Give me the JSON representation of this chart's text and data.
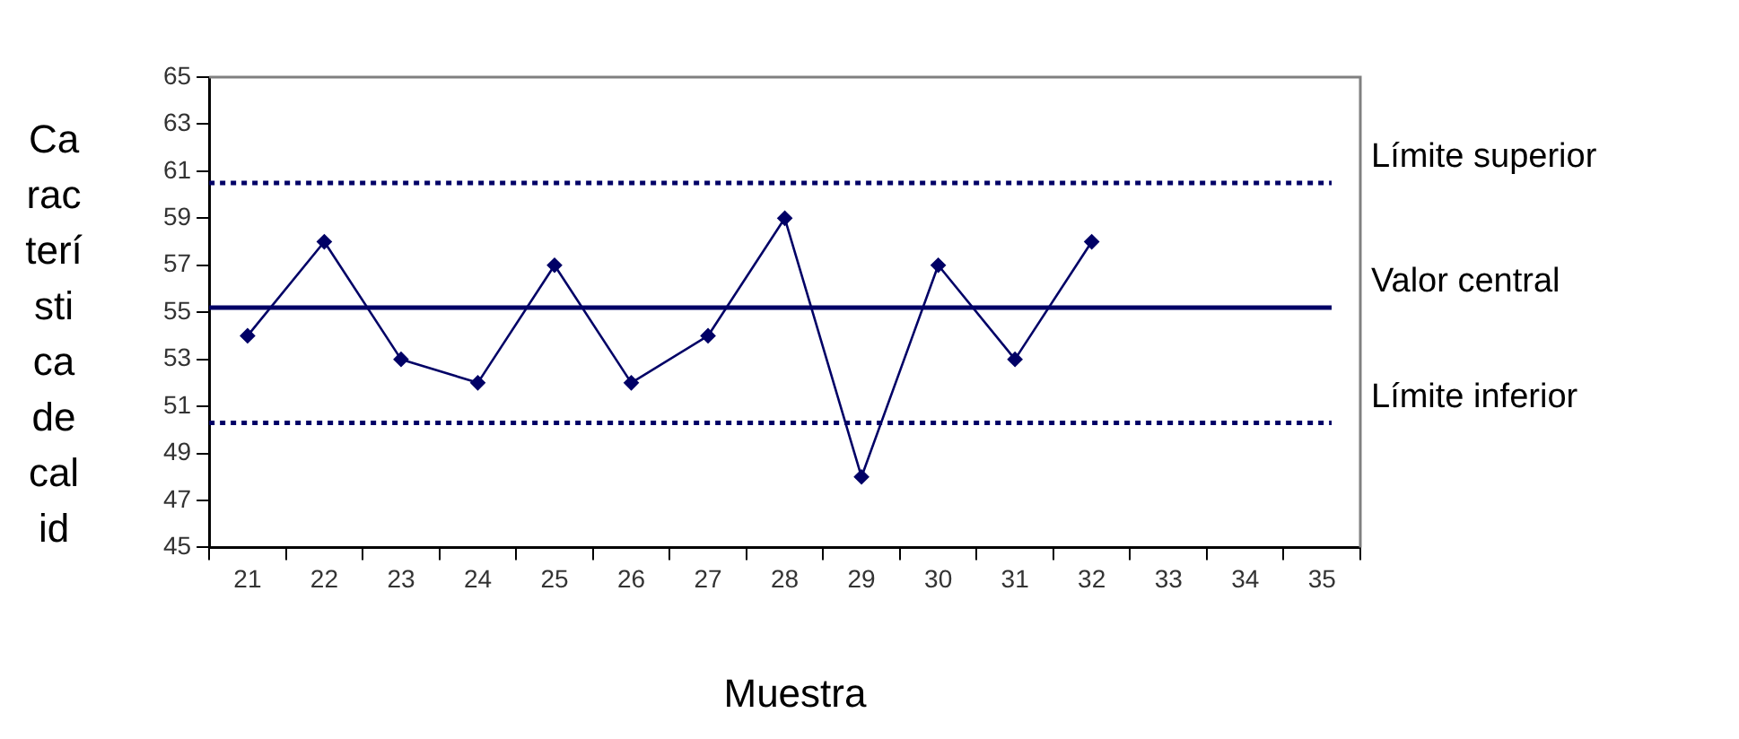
{
  "chart_data": {
    "type": "line",
    "ylabel": "Característica de calid",
    "xlabel": "Muestra",
    "categories": [
      "21",
      "22",
      "23",
      "24",
      "25",
      "26",
      "27",
      "28",
      "29",
      "30",
      "31",
      "32",
      "33",
      "34",
      "35"
    ],
    "series": [
      {
        "color": "#000066",
        "values": [
          54,
          58,
          53,
          52,
          57,
          52,
          54,
          59,
          48,
          57,
          53,
          58,
          null,
          null,
          null
        ]
      }
    ],
    "ylim": [
      45,
      65
    ],
    "yticks": [
      45,
      47,
      49,
      51,
      53,
      55,
      57,
      59,
      61,
      63,
      65
    ],
    "ref_lines": [
      {
        "axis": "y",
        "value": 60.5,
        "label": "Límite superior",
        "color": "#000066",
        "line_style": "dotted"
      },
      {
        "axis": "y",
        "value": 55.2,
        "label": "Valor central",
        "color": "#000066",
        "line_style": "solid"
      },
      {
        "axis": "y",
        "value": 50.3,
        "label": "Límite inferior",
        "color": "#000066",
        "line_style": "dotted"
      }
    ],
    "marker": "diamond",
    "line_style": "solid",
    "grid": false,
    "legend": false
  }
}
